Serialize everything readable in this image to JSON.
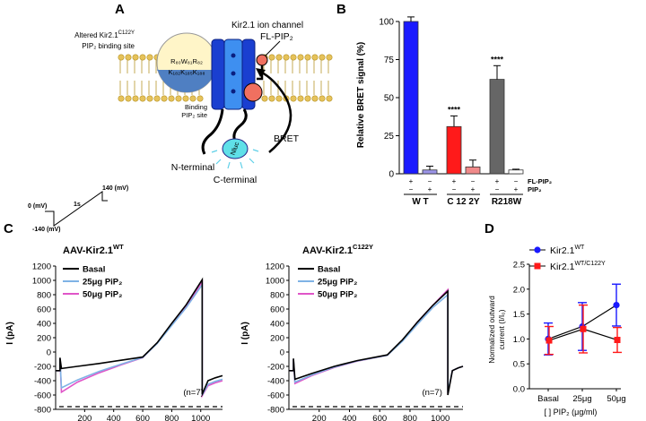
{
  "panel_letters": [
    "A",
    "B",
    "C",
    "D"
  ],
  "panel_a": {
    "channel_label": "Kir2.1 ion channel",
    "altered_site_line1": "Altered Kir2.1",
    "altered_site_sup": "C122Y",
    "altered_site_line2": "PIP₂ binding site",
    "residues_line1": "R₈₀W₈₁R₈₂",
    "residues_line2": "K₁₈₂K₁₈₅K₁₈₈",
    "binding_line1": "Binding",
    "binding_line2": "PIP₂ site",
    "fl_pip2": "FL-PIP₂",
    "n_terminal": "N-terminal",
    "c_terminal": "C-terminal",
    "nluc": "Nluc",
    "bret": "BRET",
    "protocol_labels": [
      "0 (mV)",
      "-140 (mV)",
      "1s",
      "140 (mV)"
    ]
  },
  "chart_data": [
    {
      "panel": "B",
      "type": "bar",
      "ylabel": "Relative BRET signal (%)",
      "ylim": [
        0,
        100
      ],
      "yticks": [
        0,
        25,
        50,
        75,
        100
      ],
      "categories": [
        "WT FL-PIP2",
        "WT PIP2",
        "C122Y FL-PIP2",
        "C122Y PIP2",
        "R218W FL-PIP2",
        "R218W PIP2"
      ],
      "values": [
        100,
        2.5,
        31,
        4.5,
        62,
        2.5
      ],
      "errors": [
        3,
        2.5,
        7,
        4.5,
        9,
        0.5
      ],
      "colors": [
        "#1a1aff",
        "#9b94e8",
        "#ff1a1a",
        "#f08a8a",
        "#666666",
        "#ffffff"
      ],
      "significance": [
        "",
        "",
        "****",
        "",
        "****",
        ""
      ],
      "row_fl_signs": [
        "+",
        "−",
        "+",
        "−",
        "+",
        "−"
      ],
      "row_pip_signs": [
        "−",
        "+",
        "−",
        "+",
        "−",
        "+"
      ],
      "row_labels": [
        "FL-PIP₂",
        "PIP₂"
      ],
      "groups": [
        "W T",
        "C 12 2Y",
        "R218W"
      ]
    },
    {
      "panel": "C-left",
      "type": "line",
      "title": "AAV-Kir2.1",
      "title_sup": "WT",
      "xlabel": "Time (ms)",
      "ylabel": "I (pA)",
      "xlim": [
        0,
        1150
      ],
      "ylim": [
        -800,
        1200
      ],
      "xticks": [
        200,
        400,
        600,
        800,
        1000
      ],
      "yticks": [
        -800,
        -600,
        -400,
        -200,
        0,
        200,
        400,
        600,
        800,
        1000,
        1200
      ],
      "n_label": "(n=7)",
      "series": [
        {
          "name": "Basal",
          "color": "#000000",
          "x": [
            0,
            30,
            30,
            40,
            150,
            300,
            450,
            600,
            700,
            800,
            900,
            1010,
            1010,
            1050,
            1100,
            1150
          ],
          "y": [
            -260,
            -260,
            -80,
            -230,
            -200,
            -160,
            -115,
            -70,
            130,
            400,
            660,
            1010,
            -590,
            -400,
            -360,
            -330
          ]
        },
        {
          "name": "25μg PiP₂",
          "color": "#7fb2e5",
          "x": [
            0,
            30,
            30,
            40,
            150,
            300,
            450,
            600,
            700,
            800,
            900,
            1010,
            1010,
            1050,
            1100,
            1150
          ],
          "y": [
            -260,
            -260,
            -90,
            -500,
            -390,
            -270,
            -170,
            -75,
            120,
            370,
            620,
            940,
            -600,
            -450,
            -410,
            -380
          ]
        },
        {
          "name": "50μg PiP₂",
          "color": "#e055c8",
          "x": [
            0,
            30,
            30,
            40,
            150,
            300,
            450,
            600,
            700,
            800,
            900,
            1010,
            1010,
            1050,
            1100,
            1150
          ],
          "y": [
            -260,
            -260,
            -90,
            -560,
            -420,
            -290,
            -180,
            -78,
            125,
            385,
            640,
            980,
            -610,
            -470,
            -430,
            -400
          ]
        }
      ]
    },
    {
      "panel": "C-right",
      "type": "line",
      "title": "AAV-Kir2.1",
      "title_sup": "C122Y",
      "xlabel": "Time (ms)",
      "ylabel": "I (pA)",
      "xlim": [
        0,
        1150
      ],
      "ylim": [
        -800,
        1200
      ],
      "xticks": [
        200,
        400,
        600,
        800,
        1000
      ],
      "yticks": [
        -800,
        -600,
        -400,
        -200,
        0,
        200,
        400,
        600,
        800,
        1000,
        1200
      ],
      "n_label": "(n=7)",
      "series": [
        {
          "name": "Basal",
          "color": "#000000",
          "x": [
            0,
            30,
            30,
            40,
            150,
            300,
            450,
            650,
            750,
            850,
            950,
            1050,
            1050,
            1080,
            1120,
            1150
          ],
          "y": [
            -260,
            -260,
            -90,
            -380,
            -300,
            -200,
            -120,
            -40,
            170,
            420,
            650,
            850,
            -600,
            -260,
            -220,
            -200
          ]
        },
        {
          "name": "25μg PiP₂",
          "color": "#7fb2e5",
          "x": [
            0,
            30,
            30,
            40,
            150,
            300,
            450,
            650,
            750,
            850,
            950,
            1050,
            1050,
            1080,
            1120,
            1150
          ],
          "y": [
            -260,
            -260,
            -100,
            -420,
            -320,
            -210,
            -125,
            -45,
            150,
            390,
            620,
            800,
            -560,
            -260,
            -220,
            -200
          ]
        },
        {
          "name": "50μg PiP₂",
          "color": "#e055c8",
          "x": [
            0,
            30,
            30,
            40,
            150,
            300,
            450,
            650,
            750,
            850,
            950,
            1050,
            1050,
            1080,
            1120,
            1150
          ],
          "y": [
            -260,
            -260,
            -100,
            -440,
            -330,
            -215,
            -128,
            -45,
            160,
            420,
            650,
            870,
            -580,
            -260,
            -220,
            -200
          ]
        }
      ]
    },
    {
      "panel": "D",
      "type": "line",
      "xlabel": "[ ] PIP₂ (μg/ml)",
      "ylabel_line1": "Normalized outward",
      "ylabel_line2": "current (I/I₀)",
      "categories": [
        "Basal",
        "25μg",
        "50μg"
      ],
      "ylim": [
        0,
        2.5
      ],
      "yticks": [
        "0.0",
        "0.5",
        "1.0",
        "1.5",
        "2.0",
        "2.5"
      ],
      "series": [
        {
          "name": "Kir2.1",
          "name_sup": "WT",
          "color": "#1a1aff",
          "marker": "circle",
          "values": [
            1.0,
            1.25,
            1.68
          ],
          "errors": [
            0.32,
            0.48,
            0.42
          ]
        },
        {
          "name": "Kir2.1",
          "name_sup": "WT/C122Y",
          "color": "#ff1a1a",
          "marker": "square",
          "values": [
            0.97,
            1.2,
            0.98
          ],
          "errors": [
            0.28,
            0.48,
            0.25
          ]
        }
      ]
    }
  ]
}
